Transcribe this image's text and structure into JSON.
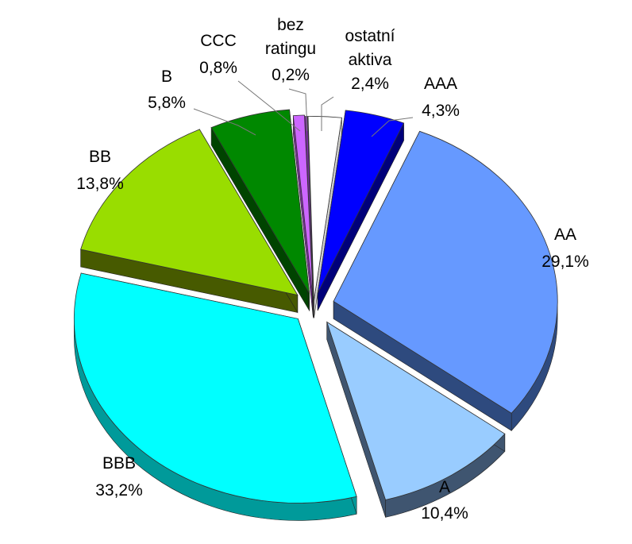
{
  "chart_data": {
    "type": "pie",
    "title": "",
    "slices": [
      {
        "label": "ostatní aktiva",
        "label_lines": [
          "ostatní",
          "aktiva"
        ],
        "value": 2.4,
        "value_text": "2,4%",
        "color": "#ffffff",
        "side_color": "#d0d0d0"
      },
      {
        "label": "AAA",
        "label_lines": [
          "AAA"
        ],
        "value": 4.3,
        "value_text": "4,3%",
        "color": "#0000ff",
        "side_color": "#00007a"
      },
      {
        "label": "AA",
        "label_lines": [
          "AA"
        ],
        "value": 29.1,
        "value_text": "29,1%",
        "color": "#6699ff",
        "side_color": "#2e4a7e"
      },
      {
        "label": "A",
        "label_lines": [
          "A"
        ],
        "value": 10.4,
        "value_text": "10,4%",
        "color": "#99ccff",
        "side_color": "#3f5570"
      },
      {
        "label": "BBB",
        "label_lines": [
          "BBB"
        ],
        "value": 33.2,
        "value_text": "33,2%",
        "color": "#00ffff",
        "side_color": "#009a9a"
      },
      {
        "label": "BB",
        "label_lines": [
          "BB"
        ],
        "value": 13.8,
        "value_text": "13,8%",
        "color": "#99dd00",
        "side_color": "#475a00"
      },
      {
        "label": "B",
        "label_lines": [
          "B"
        ],
        "value": 5.8,
        "value_text": "5,8%",
        "color": "#008800",
        "side_color": "#004400"
      },
      {
        "label": "CCC",
        "label_lines": [
          "CCC"
        ],
        "value": 0.8,
        "value_text": "0,8%",
        "color": "#cc66ff",
        "side_color": "#7a2f99"
      },
      {
        "label": "bez ratingu",
        "label_lines": [
          "bez",
          "ratingu"
        ],
        "value": 0.2,
        "value_text": "0,2%",
        "color": "#7a2fa0",
        "side_color": "#3f1055"
      }
    ],
    "exploded": true,
    "three_d": true,
    "legend": "none"
  }
}
